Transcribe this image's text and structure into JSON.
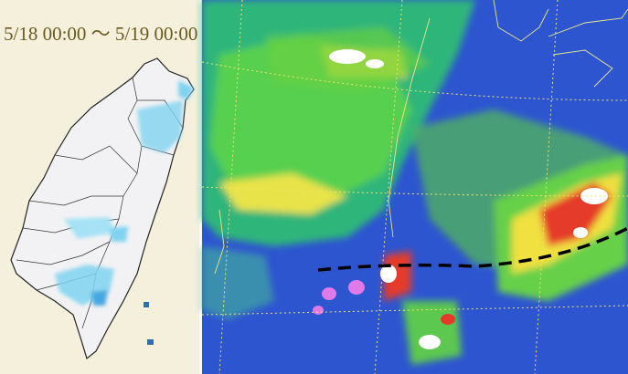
{
  "left_panel": {
    "time_range": "5/18 00:00 ～ 5/19 00:00"
  }
}
